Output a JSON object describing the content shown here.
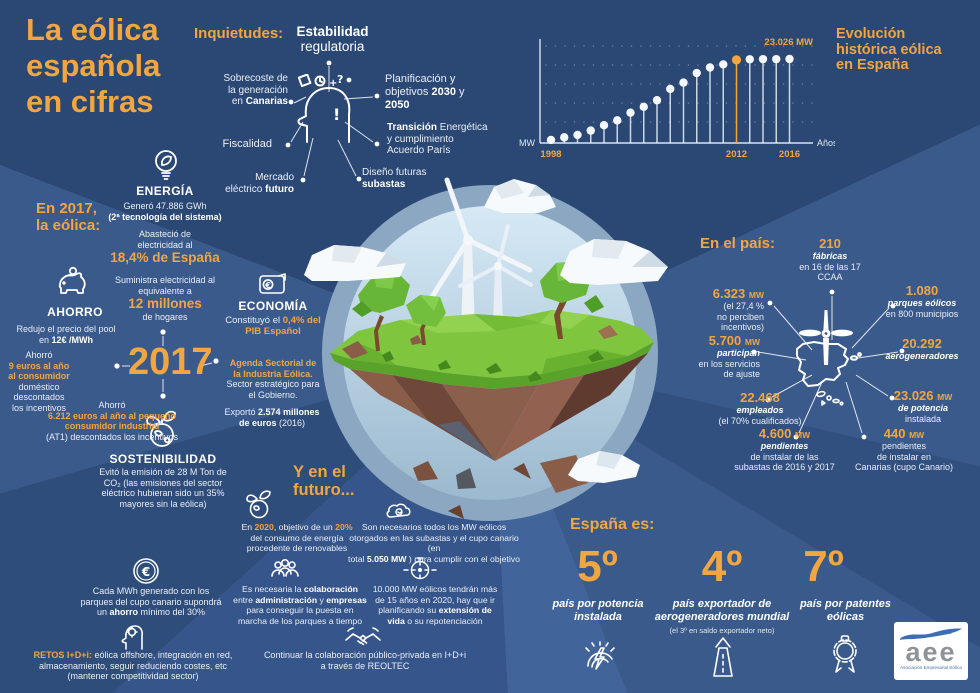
{
  "colors": {
    "accent_orange": "#F2A640",
    "bg_medium": "#3a5a8c",
    "bg_dark": "#2b4875",
    "white": "#ffffff"
  },
  "title": {
    "lines": [
      [
        {
          "t": "La eólica"
        }
      ],
      [
        {
          "t": "española"
        }
      ],
      [
        {
          "t": "en cifras"
        }
      ]
    ]
  },
  "inquietudes": {
    "label": "Inquietudes:",
    "estabilidad": [
      [
        {
          "t": "Estabilidad",
          "c": "b"
        }
      ],
      [
        {
          "t": "regulatoria"
        }
      ]
    ],
    "sobrecoste": [
      [
        {
          "t": "Sobrecoste de"
        }
      ],
      [
        {
          "t": "la generación"
        }
      ],
      [
        {
          "t": "en "
        },
        {
          "t": "Canarias",
          "c": "b"
        }
      ]
    ],
    "planificacion": [
      [
        {
          "t": "Planificación y"
        }
      ],
      [
        {
          "t": "objetivos "
        },
        {
          "t": "2030",
          "c": "b"
        },
        {
          "t": " y"
        }
      ],
      [
        {
          "t": "2050",
          "c": "b"
        }
      ]
    ],
    "fiscalidad": [
      [
        {
          "t": "Fiscalidad"
        }
      ]
    ],
    "transicion": [
      [
        {
          "t": "Transición",
          "c": "b"
        },
        {
          "t": " Energética"
        }
      ],
      [
        {
          "t": "y cumplimiento"
        }
      ],
      [
        {
          "t": "Acuerdo París"
        }
      ]
    ],
    "mercado": [
      [
        {
          "t": "Mercado"
        }
      ],
      [
        {
          "t": "eléctrico "
        },
        {
          "t": "futuro",
          "c": "b"
        }
      ]
    ],
    "diseno": [
      [
        {
          "t": "Diseño futuras"
        }
      ],
      [
        {
          "t": "subastas",
          "c": "b"
        }
      ]
    ]
  },
  "chart": {
    "title_lines": [
      [
        {
          "t": "Evolución"
        }
      ],
      [
        {
          "t": "histórica eólica"
        }
      ],
      [
        {
          "t": "en España"
        }
      ]
    ]
  },
  "chart_data": {
    "type": "lollipop",
    "title": "Evolución histórica eólica en España",
    "xlabel": "Años",
    "ylabel": "MW",
    "years": [
      1998,
      1999,
      2000,
      2001,
      2002,
      2003,
      2004,
      2005,
      2006,
      2007,
      2008,
      2009,
      2010,
      2011,
      2012,
      2013,
      2014,
      2015,
      2016
    ],
    "values_mw": [
      834,
      1539,
      2206,
      3397,
      4879,
      6203,
      8317,
      9918,
      11722,
      14820,
      16555,
      19176,
      20693,
      21529,
      22789,
      22953,
      22986,
      22988,
      23026
    ],
    "highlight_year": 2012,
    "peak_label": "23.026 MW",
    "x_tick_labels": [
      "1998",
      "2012",
      "2016"
    ],
    "ylim": [
      0,
      23026
    ],
    "grid": "dotted"
  },
  "en2017": {
    "lines": [
      [
        {
          "t": "En 2017,"
        }
      ],
      [
        {
          "t": "la eólica:"
        }
      ]
    ]
  },
  "energia": {
    "header": "ENERGÍA",
    "genero": [
      [
        {
          "t": "Generó 47.886 GWh"
        }
      ],
      [
        {
          "t": "(2ª tecnología del sistema)",
          "c": "b"
        }
      ]
    ],
    "abastecio": [
      [
        {
          "t": "Abasteció de"
        }
      ],
      [
        {
          "t": "electricidad al"
        }
      ],
      [
        {
          "t": "18,4% de España",
          "c": "obig"
        }
      ]
    ],
    "suministra": [
      [
        {
          "t": "Suministra electricidad al"
        }
      ],
      [
        {
          "t": "equivalente a"
        }
      ],
      [
        {
          "t": "12 millones",
          "c": "obig"
        }
      ],
      [
        {
          "t": "de hogares"
        }
      ]
    ]
  },
  "ahorro": {
    "header": "AHORRO",
    "redujo": [
      [
        {
          "t": "Redujo el precio del pool"
        }
      ],
      [
        {
          "t": "en "
        },
        {
          "t": "12€ /MWh",
          "c": "b"
        }
      ]
    ],
    "consumidor": [
      [
        {
          "t": "Ahorró"
        }
      ],
      [
        {
          "t": "9 euros al año",
          "c": "o"
        }
      ],
      [
        {
          "t": "al consumidor",
          "c": "o"
        }
      ],
      [
        {
          "t": "doméstico descontados"
        }
      ],
      [
        {
          "t": "los incentivos"
        }
      ]
    ],
    "industrial": [
      [
        {
          "t": "Ahorró"
        }
      ],
      [
        {
          "t": "6.212 euros al año al pequeño",
          "c": "o"
        }
      ],
      [
        {
          "t": "consumidor industrial",
          "c": "o"
        }
      ],
      [
        {
          "t": "(AT1) descontados los incentivos"
        }
      ]
    ]
  },
  "year_hub": "2017",
  "sostenibilidad": {
    "header": "SOSTENIBILIDAD",
    "body": [
      [
        {
          "t": "Evitó la emisión de 28 M Ton de"
        }
      ],
      [
        {
          "t": "CO₂ (las emisiones del sector"
        }
      ],
      [
        {
          "t": "eléctrico hubieran sido un 35%"
        }
      ],
      [
        {
          "t": "mayores sin la eólica)"
        }
      ]
    ]
  },
  "economia": {
    "header": "ECONOMÍA",
    "pib": [
      [
        {
          "t": "Constituyó el "
        },
        {
          "t": "0,4% del",
          "c": "o"
        }
      ],
      [
        {
          "t": "PIB Español",
          "c": "o"
        }
      ]
    ],
    "agenda": [
      [
        {
          "t": "Agenda Sectorial de",
          "c": "o"
        }
      ],
      [
        {
          "t": "la Industria Eólica.",
          "c": "o"
        }
      ],
      [
        {
          "t": "Sector estratégico para"
        }
      ],
      [
        {
          "t": "el Gobierno."
        }
      ]
    ],
    "exporto": [
      [
        {
          "t": "Exportó "
        },
        {
          "t": "2.574 millones",
          "c": "b"
        }
      ],
      [
        {
          "t": "de euros",
          "c": "b"
        },
        {
          "t": " (2016)"
        }
      ]
    ]
  },
  "cupo": [
    [
      {
        "t": "Cada MWh generado con los"
      }
    ],
    [
      {
        "t": "parques del cupo canario supondrá"
      }
    ],
    [
      {
        "t": "un "
      },
      {
        "t": "ahorro",
        "c": "b"
      },
      {
        "t": " mínimo del 30%"
      }
    ]
  ],
  "retos": [
    [
      {
        "t": "RETOS I+D+i:",
        "c": "o"
      },
      {
        "t": " eólica offshore, integración en red,"
      }
    ],
    [
      {
        "t": "almacenamiento, seguir reduciendo costes, etc"
      }
    ],
    [
      {
        "t": "(mantener competitividad sector)"
      }
    ]
  ],
  "futuro": {
    "title": [
      [
        {
          "t": "Y en el"
        }
      ],
      [
        {
          "t": "futuro..."
        }
      ]
    ],
    "renovables": [
      [
        {
          "t": "En "
        },
        {
          "t": "2020",
          "c": "o"
        },
        {
          "t": ", objetivo de un "
        },
        {
          "t": "20%",
          "c": "o"
        }
      ],
      [
        {
          "t": "del consumo de energía"
        }
      ],
      [
        {
          "t": "procedente de renovables"
        }
      ]
    ],
    "subastas": [
      [
        {
          "t": "Son necesarios todos los MW eólicos"
        }
      ],
      [
        {
          "t": "otorgados en las subastas y el cupo canario (en"
        }
      ],
      [
        {
          "t": "total "
        },
        {
          "t": "5.050 MW",
          "c": "b"
        },
        {
          "t": " ) para cumplir con el objetivo"
        }
      ]
    ],
    "colaboracion": [
      [
        {
          "t": "Es necesaria la "
        },
        {
          "t": "colaboración",
          "c": "b"
        }
      ],
      [
        {
          "t": "entre "
        },
        {
          "t": "administración",
          "c": "b"
        },
        {
          "t": " y "
        },
        {
          "t": "empresas",
          "c": "b"
        }
      ],
      [
        {
          "t": "para conseguir la puesta en"
        }
      ],
      [
        {
          "t": "marcha de los parques a tiempo"
        }
      ]
    ],
    "repotenciacion": [
      [
        {
          "t": "10.000 MW eólicos tendrán más"
        }
      ],
      [
        {
          "t": "de 15 años en 2020, hay que ir"
        }
      ],
      [
        {
          "t": "planificando su "
        },
        {
          "t": "extensión de",
          "c": "b"
        }
      ],
      [
        {
          "t": "vida",
          "c": "b"
        },
        {
          "t": " o su repotenciación"
        }
      ]
    ],
    "reoltec": [
      [
        {
          "t": "Continuar la colaboración público-privada en I+D+i"
        }
      ],
      [
        {
          "t": "a través de REOLTEC"
        }
      ]
    ]
  },
  "pais": {
    "label": "En el país:",
    "f210": [
      [
        {
          "t": "210",
          "c": "onum"
        }
      ],
      [
        {
          "t": "fábricas",
          "c": "i"
        }
      ],
      [
        {
          "t": "en 16 de las 17"
        }
      ],
      [
        {
          "t": "CCAA"
        }
      ]
    ],
    "mw6323": [
      [
        {
          "t": "6.323 ",
          "c": "onum"
        },
        {
          "t": "MW",
          "c": "omw"
        }
      ],
      [
        {
          "t": "(el 27,4 %"
        }
      ],
      [
        {
          "t": "no perciben incentivos)"
        }
      ]
    ],
    "p1080": [
      [
        {
          "t": "1.080",
          "c": "onum"
        }
      ],
      [
        {
          "t": "parques eólicos",
          "c": "i"
        }
      ],
      [
        {
          "t": "en 800 municipios"
        }
      ]
    ],
    "mw5700": [
      [
        {
          "t": "5.700 ",
          "c": "onum"
        },
        {
          "t": "MW",
          "c": "omw"
        }
      ],
      [
        {
          "t": "participan",
          "c": "i"
        }
      ],
      [
        {
          "t": "en los servicios"
        }
      ],
      [
        {
          "t": "de ajuste"
        }
      ]
    ],
    "a20292": [
      [
        {
          "t": "20.292",
          "c": "onum"
        }
      ],
      [
        {
          "t": "aerogeneradores",
          "c": "i"
        }
      ]
    ],
    "e22468": [
      [
        {
          "t": "22.468",
          "c": "onum"
        }
      ],
      [
        {
          "t": "empleados",
          "c": "i"
        }
      ],
      [
        {
          "t": "(el 70% cualificados)"
        }
      ]
    ],
    "mw23026": [
      [
        {
          "t": "23.026 ",
          "c": "onum"
        },
        {
          "t": "MW",
          "c": "omw"
        }
      ],
      [
        {
          "t": "de potencia",
          "c": "i"
        }
      ],
      [
        {
          "t": "instalada"
        }
      ]
    ],
    "mw4600": [
      [
        {
          "t": "4.600 ",
          "c": "onum"
        },
        {
          "t": "MW",
          "c": "omw"
        }
      ],
      [
        {
          "t": "pendientes",
          "c": "i"
        }
      ],
      [
        {
          "t": "de instalar de las"
        }
      ],
      [
        {
          "t": "subastas de 2016 y 2017"
        }
      ]
    ],
    "mw440": [
      [
        {
          "t": "440 ",
          "c": "onum"
        },
        {
          "t": "MW",
          "c": "omw"
        }
      ],
      [
        {
          "t": "pendientes"
        }
      ],
      [
        {
          "t": "de instalar en"
        }
      ],
      [
        {
          "t": "Canarias (cupo Canario)"
        }
      ]
    ]
  },
  "espana": {
    "label": "España es:",
    "ranks": [
      {
        "num": "5º",
        "label": [
          [
            {
              "t": "país por potencia",
              "c": "i"
            }
          ],
          [
            {
              "t": "instalada",
              "c": "i"
            }
          ]
        ]
      },
      {
        "num": "4º",
        "label": [
          [
            {
              "t": "país exportador de",
              "c": "i"
            }
          ],
          [
            {
              "t": "aerogeneradores mundial",
              "c": "i"
            }
          ],
          [
            {
              "t": "(el 3º en saldo exportador neto)",
              "c": "sm"
            }
          ]
        ]
      },
      {
        "num": "7º",
        "label": [
          [
            {
              "t": "país por patentes",
              "c": "i"
            }
          ],
          [
            {
              "t": "eólicas",
              "c": "i"
            }
          ]
        ]
      }
    ]
  },
  "logo": {
    "name": "aee",
    "tagline": "Asociación Empresarial Eólica"
  }
}
